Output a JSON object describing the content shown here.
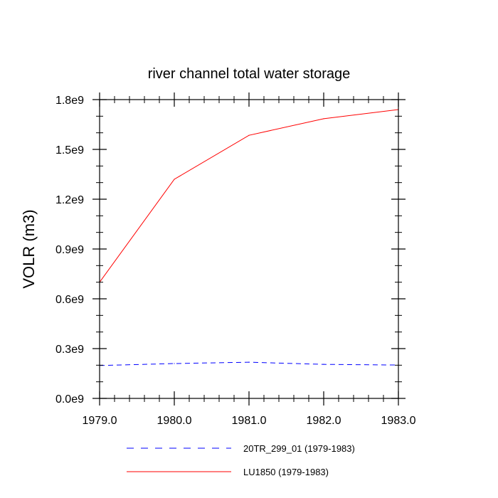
{
  "chart_data": {
    "type": "line",
    "title": "river channel total water storage",
    "xlabel": "",
    "ylabel": "VOLR  (m3)",
    "xlim": [
      1979.0,
      1983.0
    ],
    "ylim": [
      0.0,
      1800000000.0
    ],
    "x_ticks": [
      {
        "value": 1979.0,
        "label": "1979.0"
      },
      {
        "value": 1980.0,
        "label": "1980.0"
      },
      {
        "value": 1981.0,
        "label": "1981.0"
      },
      {
        "value": 1982.0,
        "label": "1982.0"
      },
      {
        "value": 1983.0,
        "label": "1983.0"
      }
    ],
    "y_ticks": [
      {
        "value": 0.0,
        "label": "0.0e9"
      },
      {
        "value": 300000000.0,
        "label": "0.3e9"
      },
      {
        "value": 600000000.0,
        "label": "0.6e9"
      },
      {
        "value": 900000000.0,
        "label": "0.9e9"
      },
      {
        "value": 1200000000.0,
        "label": "1.2e9"
      },
      {
        "value": 1500000000.0,
        "label": "1.5e9"
      },
      {
        "value": 1800000000.0,
        "label": "1.8e9"
      }
    ],
    "x_minor_step": 0.2,
    "y_minor_step": 100000000.0,
    "x": [
      1979.0,
      1980.0,
      1981.0,
      1982.0,
      1983.0
    ],
    "series": [
      {
        "name": "20TR_299_01 (1979-1983)",
        "color": "#0000ff",
        "dash": "dashed",
        "values": [
          198000000.0,
          210000000.0,
          218000000.0,
          205000000.0,
          201000000.0
        ]
      },
      {
        "name": "LU1850 (1979-1983)",
        "color": "#ff0000",
        "dash": "solid",
        "values": [
          700000000.0,
          1320000000.0,
          1585000000.0,
          1685000000.0,
          1740000000.0
        ]
      }
    ],
    "grid": false,
    "legend_position": "bottom-center"
  }
}
